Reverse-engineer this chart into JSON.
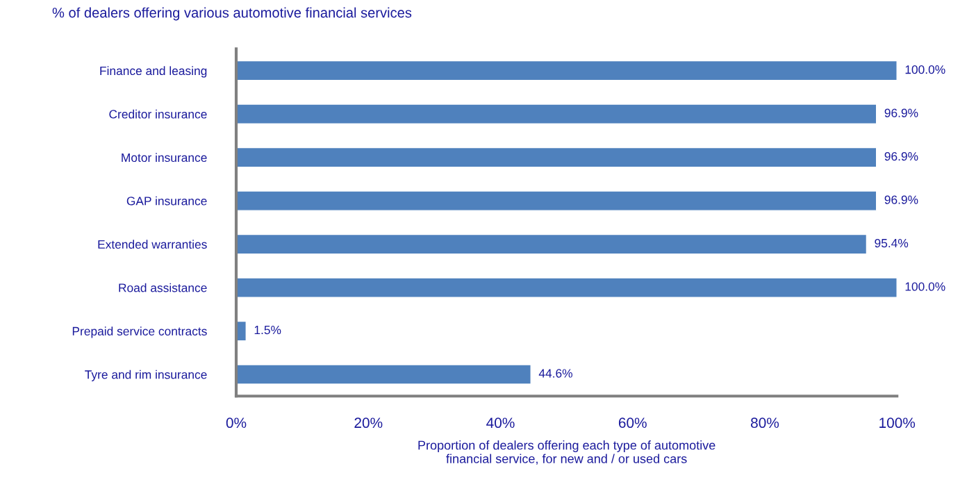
{
  "chart_data": {
    "type": "bar",
    "orientation": "horizontal",
    "title": "% of dealers offering various automotive financial services",
    "xlabel": "Proportion of dealers offering each type of automotive\nfinancial service, for new and / or used cars",
    "categories": [
      "Finance and leasing",
      "Creditor insurance",
      "Motor insurance",
      "GAP insurance",
      "Extended warranties",
      "Road assistance",
      "Prepaid service contracts",
      "Tyre and rim insurance"
    ],
    "values": [
      100.0,
      96.9,
      96.9,
      96.9,
      95.4,
      100.0,
      1.5,
      44.6
    ],
    "value_labels": [
      "100.0%",
      "96.9%",
      "96.9%",
      "96.9%",
      "95.4%",
      "100.0%",
      "1.5%",
      "44.6%"
    ],
    "color": "#4f81bd",
    "xlim": [
      0,
      100
    ],
    "xticks": [
      {
        "value": 0,
        "label": "0%"
      },
      {
        "value": 20,
        "label": "20%"
      },
      {
        "value": 40,
        "label": "40%"
      },
      {
        "value": 60,
        "label": "60%"
      },
      {
        "value": 80,
        "label": "80%"
      },
      {
        "value": 100,
        "label": "100%"
      }
    ],
    "grid": false,
    "legend": false
  }
}
